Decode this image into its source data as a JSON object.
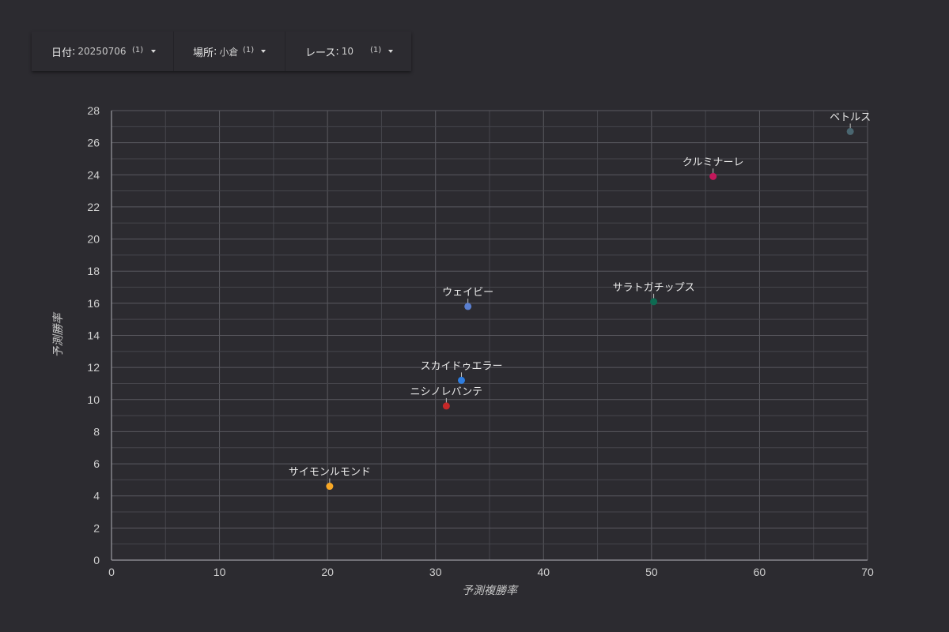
{
  "filters": [
    {
      "label": "日付",
      "value": "20250706",
      "count": "(1)"
    },
    {
      "label": "場所",
      "value": "小倉",
      "count": "(1)"
    },
    {
      "label": "レース",
      "value": "10",
      "count": "(1)"
    }
  ],
  "icons": {
    "dropdown": "caret-down-icon"
  },
  "chart_data": {
    "type": "scatter",
    "xlabel": "予測複勝率",
    "ylabel": "予測勝率",
    "xlim": [
      0,
      70
    ],
    "ylim": [
      0,
      28
    ],
    "x_ticks": [
      0,
      10,
      20,
      30,
      40,
      50,
      60,
      70
    ],
    "y_ticks": [
      0,
      2,
      4,
      6,
      8,
      10,
      12,
      14,
      16,
      18,
      20,
      22,
      24,
      26,
      28
    ],
    "grid": true,
    "points": [
      {
        "label": "ベトルス",
        "x": 68.4,
        "y": 26.7,
        "color": "#4a6670"
      },
      {
        "label": "クルミナーレ",
        "x": 55.7,
        "y": 23.9,
        "color": "#c2185b"
      },
      {
        "label": "サラトガチップス",
        "x": 50.2,
        "y": 16.1,
        "color": "#0e6b52"
      },
      {
        "label": "ウェイビー",
        "x": 33.0,
        "y": 15.8,
        "color": "#5a7fd0"
      },
      {
        "label": "スカイドゥエラー",
        "x": 32.4,
        "y": 11.2,
        "color": "#2e7de0"
      },
      {
        "label": "ニシノレバンテ",
        "x": 31.0,
        "y": 9.6,
        "color": "#c62828"
      },
      {
        "label": "サイモンルモンド",
        "x": 20.2,
        "y": 4.6,
        "color": "#f9a825"
      }
    ]
  }
}
